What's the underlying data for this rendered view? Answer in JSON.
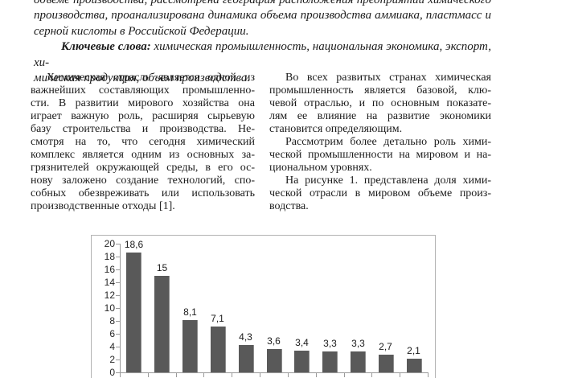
{
  "abstract": {
    "lines": [
      "объеме производства, рассмотрена география расположения предприятий химического",
      "производства, проанализирована динамика объема производства аммиака, пластмасс и",
      "серной кислоты в Российской Федерации."
    ]
  },
  "keywords": {
    "label": "Ключевые слова:",
    "rest": " химическая промышленность, национальная экономика, экспорт, хи-",
    "line2": "мическая продукция, объем производства."
  },
  "columns": {
    "left": {
      "lines": [
        "Химическая отрасль является одной из",
        "важнейших составляющих промышленно-",
        "сти. В развитии мирового хозяйства она",
        "играет важную роль, расширяя сырьевую",
        "базу строительства и производства. Не-",
        "смотря на то, что сегодня химический",
        "комплекс является одним из основных за-",
        "грязнителей окружающей среды, в его ос-",
        "нову заложено создание технологий, спо-",
        "собных обезвреживать или использовать",
        "производственные отходы [1]."
      ]
    },
    "right": {
      "lines": [
        "Во всех развитых странах химическая",
        "промышленность является базовой, клю-",
        "чевой отраслью, и по основным показате-",
        "лям ее влияние на развитие экономики",
        "становится определяющим.",
        "Рассмотрим более детально роль хими-",
        "ческой промышленности на мировом и на-",
        "циональном уровнях.",
        "На рисунке 1. представлена доля хими-",
        "ческой отрасли в мировом объеме произ-",
        "водства."
      ]
    }
  },
  "chart_data": {
    "type": "bar",
    "values": [
      18.6,
      15,
      8.1,
      7.1,
      4.3,
      3.6,
      3.4,
      3.3,
      3.3,
      2.7,
      2.1
    ],
    "value_labels": [
      "18,6",
      "15",
      "8,1",
      "7,1",
      "4,3",
      "3,6",
      "3,4",
      "3,3",
      "3,3",
      "2,7",
      "2,1"
    ],
    "title": "",
    "xlabel": "",
    "ylabel": "",
    "ylim": [
      0,
      20
    ],
    "ytick_step": 2,
    "ytick_labels": [
      "0",
      "2",
      "4",
      "6",
      "8",
      "10",
      "12",
      "14",
      "16",
      "18",
      "20"
    ],
    "grid": false,
    "legend": null,
    "x_axis_labels_visible": false,
    "bar_color": "#595959",
    "axis_color": "#9a9a9a",
    "border_color": "#b3b3b3",
    "label_color": "#1a1a1a"
  }
}
